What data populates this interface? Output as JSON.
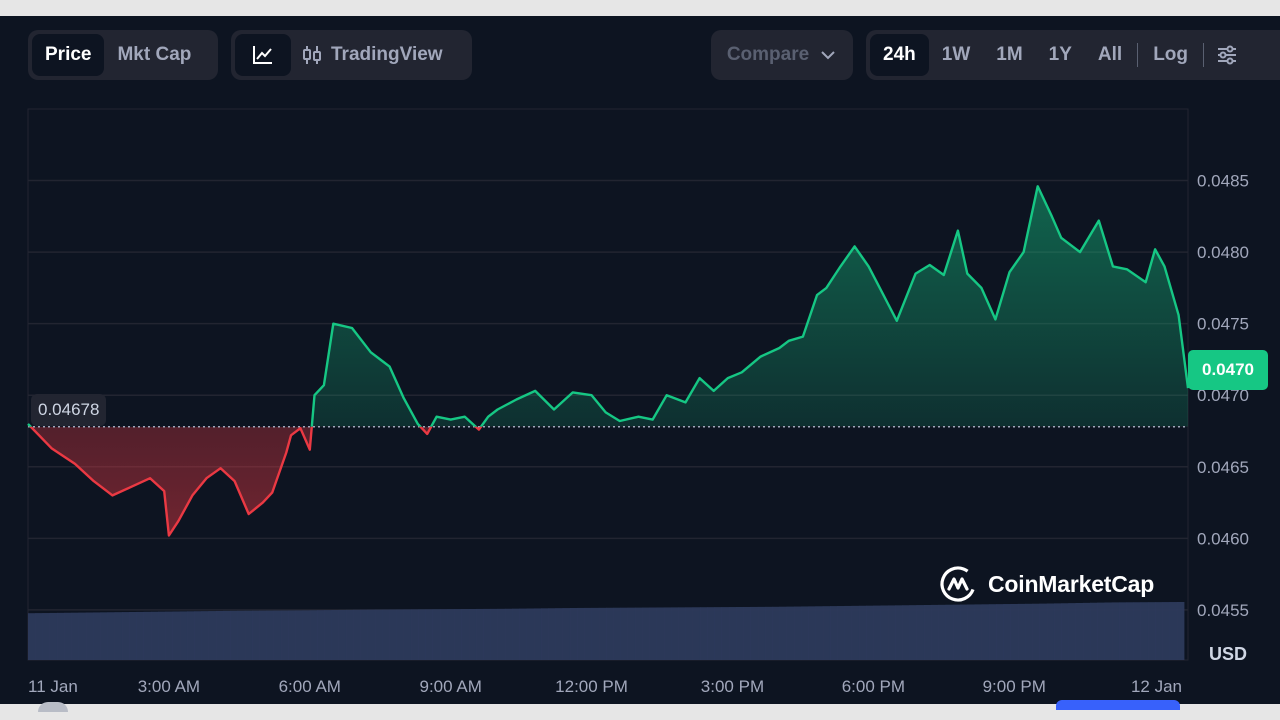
{
  "toolbar": {
    "view_toggle": [
      "Price",
      "Mkt Cap"
    ],
    "view_active": "Price",
    "chart_type": {
      "icon": "line-chart-icon",
      "tradingview_icon": "candlestick-icon",
      "tradingview_label": "TradingView"
    },
    "compare_label": "Compare",
    "ranges": [
      "24h",
      "1W",
      "1M",
      "1Y",
      "All"
    ],
    "range_active": "24h",
    "log_label": "Log",
    "settings_icon": "sliders-icon"
  },
  "overlay": {
    "reference_price": "0.04678",
    "current_price": "0.0470",
    "currency": "USD",
    "watermark": "CoinMarketCap"
  },
  "colors": {
    "background": "#0d1421",
    "up": "#16c784",
    "down": "#ea3943",
    "volume": "#2d3a5c",
    "grid": "#222531"
  },
  "chart_data": {
    "type": "area",
    "title": "",
    "xlabel": "",
    "ylabel": "USD",
    "x_ticks": [
      "11 Jan",
      "3:00 AM",
      "6:00 AM",
      "9:00 AM",
      "12:00 PM",
      "3:00 PM",
      "6:00 PM",
      "9:00 PM",
      "12 Jan"
    ],
    "y_ticks": [
      "0.0455",
      "0.0460",
      "0.0465",
      "0.0470",
      "0.0475",
      "0.0480",
      "0.0485"
    ],
    "ylim": [
      0.04515,
      0.049
    ],
    "xlim_hours": [
      0,
      24.7
    ],
    "baseline": 0.04678,
    "grid": true,
    "series": [
      {
        "x_hours": [
          0,
          0.5,
          1.0,
          1.4,
          1.8,
          2.2,
          2.6,
          2.9,
          3.0,
          3.2,
          3.5,
          3.8,
          4.1,
          4.4,
          4.7,
          5.0,
          5.2,
          5.5,
          5.6,
          5.8,
          6.0,
          6.1,
          6.3,
          6.5,
          6.9,
          7.3,
          7.7,
          8.0,
          8.3,
          8.5,
          8.7,
          9.0,
          9.3,
          9.6,
          9.8,
          10.0,
          10.4,
          10.8,
          11.2,
          11.6,
          12.0,
          12.3,
          12.6,
          13.0,
          13.3,
          13.6,
          14.0,
          14.3,
          14.6,
          14.9,
          15.2,
          15.6,
          16.0,
          16.2,
          16.5,
          16.8,
          17.0,
          17.3,
          17.6,
          17.9,
          18.2,
          18.5,
          18.9,
          19.2,
          19.5,
          19.8,
          20.0,
          20.3,
          20.6,
          20.9,
          21.2,
          21.5,
          21.8,
          22.0,
          22.4,
          22.8,
          23.1,
          23.4,
          23.8,
          24.0,
          24.2,
          24.5,
          24.7
        ],
        "y": [
          0.0468,
          0.04663,
          0.04652,
          0.0464,
          0.0463,
          0.04636,
          0.04642,
          0.04633,
          0.04602,
          0.04612,
          0.0463,
          0.04642,
          0.04649,
          0.0464,
          0.04617,
          0.04625,
          0.04632,
          0.0466,
          0.04672,
          0.04677,
          0.04662,
          0.047,
          0.04707,
          0.0475,
          0.04747,
          0.0473,
          0.0472,
          0.04698,
          0.0468,
          0.04673,
          0.04685,
          0.04683,
          0.04685,
          0.04676,
          0.04685,
          0.0469,
          0.04697,
          0.04703,
          0.0469,
          0.04702,
          0.047,
          0.04688,
          0.04682,
          0.04685,
          0.04683,
          0.047,
          0.04695,
          0.04712,
          0.04703,
          0.04712,
          0.04716,
          0.04727,
          0.04733,
          0.04738,
          0.04741,
          0.0477,
          0.04775,
          0.0479,
          0.04804,
          0.0479,
          0.04771,
          0.04752,
          0.04785,
          0.04791,
          0.04784,
          0.04815,
          0.04785,
          0.04775,
          0.04753,
          0.04786,
          0.048,
          0.04846,
          0.04825,
          0.0481,
          0.048,
          0.04822,
          0.0479,
          0.04788,
          0.04779,
          0.04802,
          0.0479,
          0.04756,
          0.04705
        ]
      }
    ],
    "volume_relative": [
      0.42,
      0.44,
      0.46,
      0.48,
      0.49,
      0.51,
      0.52,
      0.53,
      0.55,
      0.56,
      0.57,
      0.58,
      0.6,
      0.62,
      0.64,
      0.66,
      0.69,
      0.7
    ]
  }
}
